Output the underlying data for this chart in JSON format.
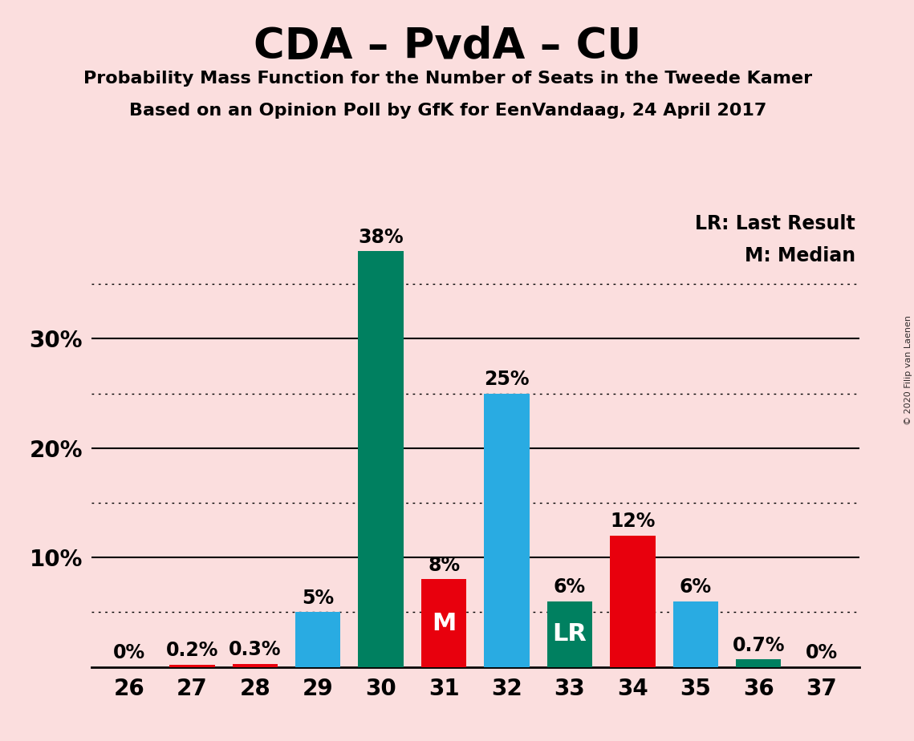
{
  "title": "CDA – PvdA – CU",
  "subtitle1": "Probability Mass Function for the Number of Seats in the Tweede Kamer",
  "subtitle2": "Based on an Opinion Poll by GfK for EenVandaag, 24 April 2017",
  "copyright": "© 2020 Filip van Laenen",
  "legend_lr": "LR: Last Result",
  "legend_m": "M: Median",
  "seats": [
    26,
    27,
    28,
    29,
    30,
    31,
    32,
    33,
    34,
    35,
    36,
    37
  ],
  "values": [
    0.0,
    0.2,
    0.3,
    5.0,
    38.0,
    8.0,
    25.0,
    6.0,
    12.0,
    6.0,
    0.7,
    0.0
  ],
  "colors": [
    "#29ABE2",
    "#E8000D",
    "#E8000D",
    "#29ABE2",
    "#008060",
    "#E8000D",
    "#29ABE2",
    "#008060",
    "#E8000D",
    "#29ABE2",
    "#008060",
    "#008060"
  ],
  "labels": [
    "0%",
    "0.2%",
    "0.3%",
    "5%",
    "38%",
    "8%",
    "25%",
    "6%",
    "12%",
    "6%",
    "0.7%",
    "0%"
  ],
  "special_labels": {
    "5": "M",
    "7": "LR"
  },
  "background_color": "#FBDEDE",
  "ylim": [
    0,
    42
  ],
  "dotted_yticks": [
    5,
    15,
    25,
    35
  ],
  "solid_yticks": [
    10,
    20,
    30
  ],
  "bar_width": 0.72
}
